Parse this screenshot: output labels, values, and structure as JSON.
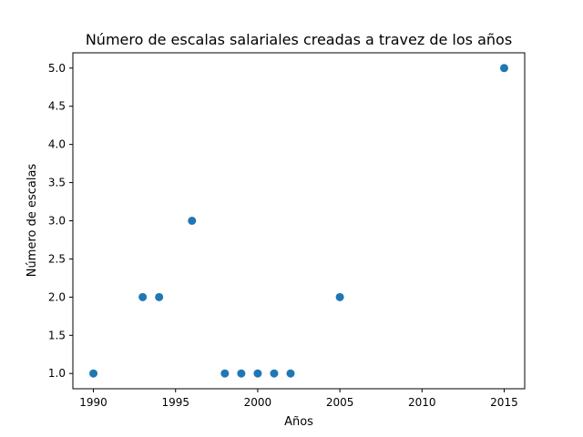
{
  "chart_data": {
    "type": "scatter",
    "title": "Número de escalas salariales creadas a travez de los años",
    "xlabel": "Años",
    "ylabel": "Número de escalas",
    "xlim": [
      1988.75,
      2016.25
    ],
    "ylim": [
      0.8,
      5.2
    ],
    "x_ticks": [
      1990,
      1995,
      2000,
      2005,
      2010,
      2015
    ],
    "x_tick_labels": [
      "1990",
      "1995",
      "2000",
      "2005",
      "2010",
      "2015"
    ],
    "y_ticks": [
      1.0,
      1.5,
      2.0,
      2.5,
      3.0,
      3.5,
      4.0,
      4.5,
      5.0
    ],
    "y_tick_labels": [
      "1.0",
      "1.5",
      "2.0",
      "2.5",
      "3.0",
      "3.5",
      "4.0",
      "4.5",
      "5.0"
    ],
    "grid": false,
    "legend": "none",
    "marker_color": "#1f77b4",
    "points": [
      {
        "x": 1990,
        "y": 1
      },
      {
        "x": 1993,
        "y": 2
      },
      {
        "x": 1994,
        "y": 2
      },
      {
        "x": 1996,
        "y": 3
      },
      {
        "x": 1998,
        "y": 1
      },
      {
        "x": 1999,
        "y": 1
      },
      {
        "x": 2000,
        "y": 1
      },
      {
        "x": 2001,
        "y": 1
      },
      {
        "x": 2002,
        "y": 1
      },
      {
        "x": 2005,
        "y": 2
      },
      {
        "x": 2015,
        "y": 5
      }
    ]
  }
}
